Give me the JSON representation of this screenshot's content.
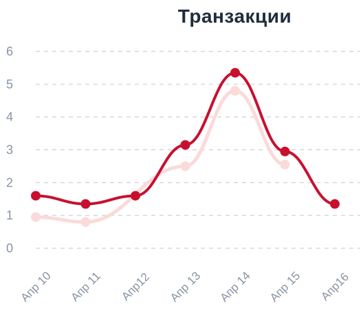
{
  "chart_data": {
    "type": "line",
    "title": "Транзакции",
    "categories": [
      "Апр 10",
      "Апр 11",
      "Апр12",
      "Апр 13",
      "Апр 14",
      "Апр 15",
      "Апр16"
    ],
    "ylim": [
      0,
      6
    ],
    "yticks": [
      "0",
      "1",
      "2",
      "3",
      "4",
      "5",
      "6"
    ],
    "grid": true,
    "series": [
      {
        "color": "#c8102e",
        "points": [
          [
            0,
            1.6
          ],
          [
            1,
            1.35
          ],
          [
            2,
            1.6
          ],
          [
            3,
            3.15
          ],
          [
            4,
            5.35
          ],
          [
            5,
            2.95
          ],
          [
            6,
            1.35
          ]
        ]
      },
      {
        "color": "#fbdada",
        "points": [
          [
            0,
            0.95
          ],
          [
            1,
            0.8
          ],
          [
            3,
            2.5
          ],
          [
            4,
            4.8
          ],
          [
            5,
            2.55
          ]
        ]
      }
    ]
  }
}
